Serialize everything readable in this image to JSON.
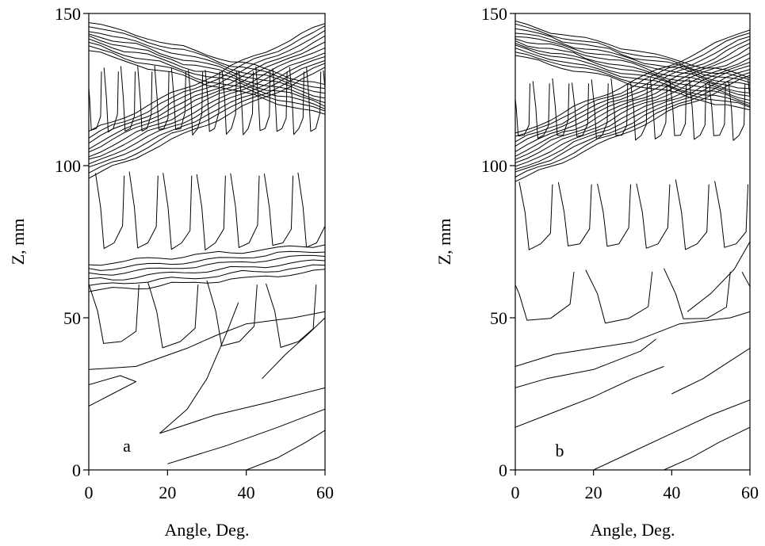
{
  "chart_data": [
    {
      "type": "contour",
      "panel_label": "a",
      "xlabel": "Angle, Deg.",
      "ylabel": "Z, mm",
      "xlim": [
        0,
        60
      ],
      "ylim": [
        0,
        150
      ],
      "xticks": [
        0,
        20,
        40,
        60
      ],
      "yticks": [
        0,
        50,
        100,
        150
      ],
      "bands": [
        {
          "z0": 143,
          "slope": -0.35,
          "count": 9,
          "spacing": 1.2
        },
        {
          "z0": 104,
          "slope": 0.6,
          "count": 11,
          "spacing": 1.5
        },
        {
          "z0": 64,
          "slope": 0.11,
          "count": 6,
          "spacing": 1.8
        }
      ],
      "chevrons": [
        {
          "z_top": 132,
          "z_bottom": 110,
          "count": 14,
          "phase": 0.0
        },
        {
          "z_top": 98,
          "z_bottom": 72,
          "count": 7,
          "phase": 0.3
        },
        {
          "z_top": 62,
          "z_bottom": 40,
          "count": 4,
          "phase": 0.1
        }
      ],
      "lower_lines": [
        {
          "points": [
            [
              0,
              33
            ],
            [
              12,
              34
            ],
            [
              25,
              40
            ],
            [
              32,
              44
            ],
            [
              40,
              48
            ],
            [
              52,
              50
            ],
            [
              60,
              52
            ]
          ]
        },
        {
          "points": [
            [
              0,
              28
            ],
            [
              8,
              31
            ],
            [
              12,
              29
            ],
            [
              6,
              25
            ],
            [
              0,
              21
            ]
          ]
        },
        {
          "points": [
            [
              18,
              12
            ],
            [
              25,
              20
            ],
            [
              30,
              30
            ],
            [
              35,
              45
            ],
            [
              38,
              55
            ]
          ]
        },
        {
          "points": [
            [
              18,
              12
            ],
            [
              32,
              18
            ],
            [
              45,
              22
            ],
            [
              60,
              27
            ]
          ]
        },
        {
          "points": [
            [
              20,
              2
            ],
            [
              35,
              8
            ],
            [
              48,
              14
            ],
            [
              60,
              20
            ]
          ]
        },
        {
          "points": [
            [
              40,
              0
            ],
            [
              48,
              4
            ],
            [
              55,
              9
            ],
            [
              60,
              13
            ]
          ]
        },
        {
          "points": [
            [
              44,
              30
            ],
            [
              50,
              38
            ],
            [
              56,
              45
            ],
            [
              60,
              50
            ]
          ]
        }
      ]
    },
    {
      "type": "contour",
      "panel_label": "b",
      "xlabel": "Angle, Deg.",
      "ylabel": "Z, mm",
      "xlim": [
        0,
        60
      ],
      "ylim": [
        0,
        150
      ],
      "xticks": [
        0,
        20,
        40,
        60
      ],
      "yticks": [
        0,
        50,
        100,
        150
      ],
      "bands": [
        {
          "z0": 142,
          "slope": -0.3,
          "count": 12,
          "spacing": 1.0
        },
        {
          "z0": 103,
          "slope": 0.58,
          "count": 13,
          "spacing": 1.3
        }
      ],
      "chevrons": [
        {
          "z_top": 128,
          "z_bottom": 108,
          "count": 12,
          "phase": 0.0
        },
        {
          "z_top": 95,
          "z_bottom": 72,
          "count": 6,
          "phase": 0.2
        },
        {
          "z_top": 66,
          "z_bottom": 48,
          "count": 3,
          "phase": 0.0
        }
      ],
      "lower_lines": [
        {
          "points": [
            [
              0,
              34
            ],
            [
              10,
              38
            ],
            [
              20,
              40
            ],
            [
              30,
              42
            ],
            [
              36,
              45
            ],
            [
              42,
              48
            ],
            [
              55,
              50
            ],
            [
              60,
              52
            ]
          ]
        },
        {
          "points": [
            [
              0,
              27
            ],
            [
              8,
              30
            ],
            [
              20,
              33
            ],
            [
              32,
              39
            ],
            [
              36,
              43
            ]
          ]
        },
        {
          "points": [
            [
              0,
              14
            ],
            [
              10,
              19
            ],
            [
              20,
              24
            ],
            [
              30,
              30
            ],
            [
              38,
              34
            ]
          ]
        },
        {
          "points": [
            [
              20,
              0
            ],
            [
              30,
              6
            ],
            [
              40,
              12
            ],
            [
              50,
              18
            ],
            [
              60,
              23
            ]
          ]
        },
        {
          "points": [
            [
              38,
              0
            ],
            [
              45,
              4
            ],
            [
              52,
              9
            ],
            [
              60,
              14
            ]
          ]
        },
        {
          "points": [
            [
              40,
              25
            ],
            [
              48,
              30
            ],
            [
              54,
              35
            ],
            [
              60,
              40
            ]
          ]
        },
        {
          "points": [
            [
              44,
              52
            ],
            [
              50,
              58
            ],
            [
              56,
              66
            ],
            [
              60,
              75
            ]
          ]
        }
      ]
    }
  ]
}
